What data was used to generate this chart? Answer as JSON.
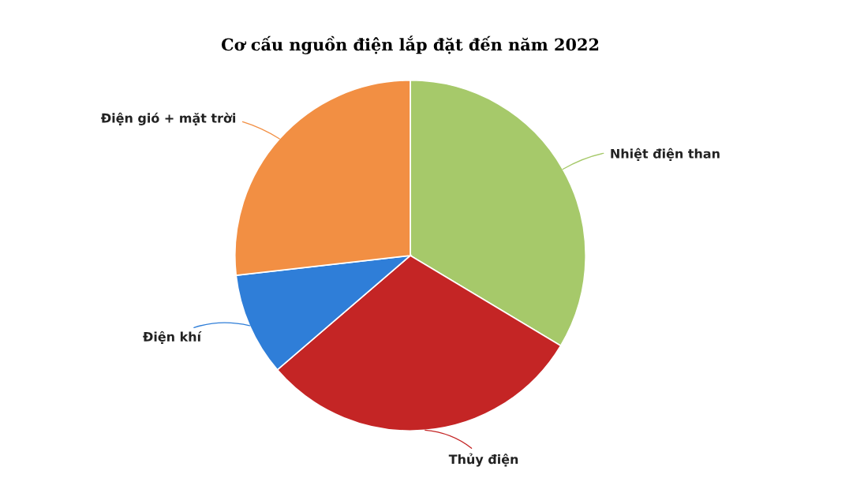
{
  "chart_data": {
    "type": "pie",
    "title": "Cơ cấu nguồn điện lắp đặt đến năm 2022",
    "categories": [
      "Nhiệt điện than",
      "Thủy điện",
      "Điện khí",
      "Điện gió + mặt trời"
    ],
    "values": [
      33.6,
      30.1,
      9.5,
      26.8
    ],
    "colors": [
      "#a6c96a",
      "#c42525",
      "#2f7ed8",
      "#f28f43"
    ]
  }
}
